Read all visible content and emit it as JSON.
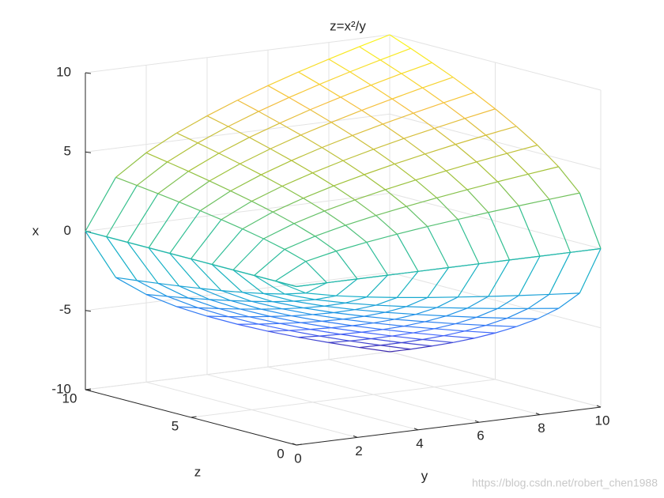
{
  "chart_data": {
    "type": "mesh3d",
    "title": "z=x²/y",
    "xlabel": "x",
    "ylabel": "y",
    "zlabel": "z",
    "xlim": [
      -10,
      10
    ],
    "ylim": [
      0,
      10
    ],
    "zlim": [
      0,
      10
    ],
    "xticks": [
      -10,
      -5,
      0,
      5,
      10
    ],
    "yticks": [
      0,
      2,
      4,
      6,
      8,
      10
    ],
    "zticks": [
      0,
      5,
      10
    ],
    "grid": true,
    "colormap": [
      "#3e26a8",
      "#4367fd",
      "#1f93e6",
      "#16b0c7",
      "#33c08f",
      "#a2c237",
      "#f5be3f",
      "#f9f816"
    ],
    "y": [
      0,
      1,
      2,
      3,
      4,
      5,
      6,
      7,
      8,
      9,
      10
    ],
    "z": [
      0,
      1,
      2,
      3,
      4,
      5,
      6,
      7,
      8,
      9,
      10
    ],
    "series": [
      {
        "values": [
          [
            0,
            0,
            0,
            0,
            0,
            0,
            0,
            0,
            0,
            0,
            0
          ],
          [
            0,
            -1,
            -1.41,
            -1.73,
            -2,
            -2.24,
            -2.45,
            -2.65,
            -2.83,
            -3,
            -3.16
          ],
          [
            0,
            -1.41,
            -2,
            -2.45,
            -2.83,
            -3.16,
            -3.46,
            -3.74,
            -4,
            -4.24,
            -4.47
          ],
          [
            0,
            -1.73,
            -2.45,
            -3,
            -3.46,
            -3.87,
            -4.24,
            -4.58,
            -4.9,
            -5.2,
            -5.48
          ],
          [
            0,
            -2,
            -2.83,
            -3.46,
            -4,
            -4.47,
            -4.9,
            -5.29,
            -5.66,
            -6,
            -6.32
          ],
          [
            0,
            -2.24,
            -3.16,
            -3.87,
            -4.47,
            -5,
            -5.48,
            -5.92,
            -6.32,
            -6.71,
            -7.07
          ],
          [
            0,
            -2.45,
            -3.46,
            -4.24,
            -4.9,
            -5.48,
            -6,
            -6.48,
            -6.93,
            -7.35,
            -7.75
          ],
          [
            0,
            -2.65,
            -3.74,
            -4.58,
            -5.29,
            -5.92,
            -6.48,
            -7,
            -7.48,
            -7.94,
            -8.37
          ],
          [
            0,
            -2.83,
            -4,
            -4.9,
            -5.66,
            -6.32,
            -6.93,
            -7.48,
            -8,
            -8.49,
            -8.94
          ],
          [
            0,
            -3,
            -4.24,
            -5.2,
            -6,
            -6.71,
            -7.35,
            -7.94,
            -8.49,
            -9,
            -9.49
          ],
          [
            0,
            -3.16,
            -4.47,
            -5.48,
            -6.32,
            -7.07,
            -7.75,
            -8.37,
            -8.94,
            -9.49,
            -10
          ]
        ]
      },
      {
        "values": [
          [
            0,
            0,
            0,
            0,
            0,
            0,
            0,
            0,
            0,
            0,
            0
          ],
          [
            0,
            1,
            1.41,
            1.73,
            2,
            2.24,
            2.45,
            2.65,
            2.83,
            3,
            3.16
          ],
          [
            0,
            1.41,
            2,
            2.45,
            2.83,
            3.16,
            3.46,
            3.74,
            4,
            4.24,
            4.47
          ],
          [
            0,
            1.73,
            2.45,
            3,
            3.46,
            3.87,
            4.24,
            4.58,
            4.9,
            5.2,
            5.48
          ],
          [
            0,
            2,
            2.83,
            3.46,
            4,
            4.47,
            4.9,
            5.29,
            5.66,
            6,
            6.32
          ],
          [
            0,
            2.24,
            3.16,
            3.87,
            4.47,
            5,
            5.48,
            5.92,
            6.32,
            6.71,
            7.07
          ],
          [
            0,
            2.45,
            3.46,
            4.24,
            4.9,
            5.48,
            6,
            6.48,
            6.93,
            7.35,
            7.75
          ],
          [
            0,
            2.65,
            3.74,
            4.58,
            5.29,
            5.92,
            6.48,
            7,
            7.48,
            7.94,
            8.37
          ],
          [
            0,
            2.83,
            4,
            4.9,
            5.66,
            6.32,
            6.93,
            7.48,
            8,
            8.49,
            8.94
          ],
          [
            0,
            3,
            4.24,
            5.2,
            6,
            6.71,
            7.35,
            7.94,
            8.49,
            9,
            9.49
          ],
          [
            0,
            3.16,
            4.47,
            5.48,
            6.32,
            7.07,
            7.75,
            8.37,
            8.94,
            9.49,
            10
          ]
        ]
      }
    ],
    "watermark": "https://blog.csdn.net/robert_chen1988"
  }
}
